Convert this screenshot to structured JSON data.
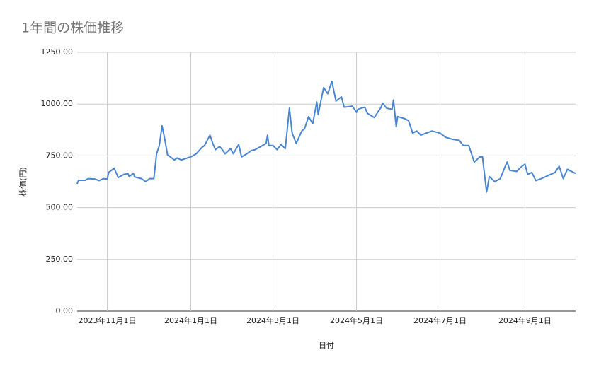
{
  "chart_data": {
    "type": "line",
    "title": "1年間の株価推移",
    "x_label": "日付",
    "y_label": "株価(円)",
    "x": [
      "2023-10-10",
      "2023-10-11",
      "2023-10-16",
      "2023-10-18",
      "2023-10-23",
      "2023-10-26",
      "2023-10-29",
      "2023-11-01",
      "2023-11-02",
      "2023-11-06",
      "2023-11-09",
      "2023-11-13",
      "2023-11-16",
      "2023-11-17",
      "2023-11-20",
      "2023-11-21",
      "2023-11-26",
      "2023-11-29",
      "2023-12-02",
      "2023-12-05",
      "2023-12-07",
      "2023-12-09",
      "2023-12-11",
      "2023-12-13",
      "2023-12-15",
      "2023-12-20",
      "2023-12-22",
      "2023-12-25",
      "2024-01-01",
      "2024-01-05",
      "2024-01-09",
      "2024-01-11",
      "2024-01-15",
      "2024-01-17",
      "2024-01-19",
      "2024-01-22",
      "2024-01-24",
      "2024-01-26",
      "2024-01-30",
      "2024-02-01",
      "2024-02-05",
      "2024-02-07",
      "2024-02-11",
      "2024-02-14",
      "2024-02-17",
      "2024-02-21",
      "2024-02-25",
      "2024-02-26",
      "2024-02-27",
      "2024-03-01",
      "2024-03-04",
      "2024-03-07",
      "2024-03-10",
      "2024-03-13",
      "2024-03-15",
      "2024-03-18",
      "2024-03-22",
      "2024-03-24",
      "2024-03-27",
      "2024-03-30",
      "2024-04-02",
      "2024-04-03",
      "2024-04-07",
      "2024-04-10",
      "2024-04-13",
      "2024-04-16",
      "2024-04-20",
      "2024-04-22",
      "2024-04-28",
      "2024-05-01",
      "2024-05-02",
      "2024-05-07",
      "2024-05-09",
      "2024-05-14",
      "2024-05-19",
      "2024-05-20",
      "2024-05-23",
      "2024-05-27",
      "2024-05-28",
      "2024-05-30",
      "2024-05-31",
      "2024-06-05",
      "2024-06-08",
      "2024-06-11",
      "2024-06-14",
      "2024-06-17",
      "2024-06-21",
      "2024-06-25",
      "2024-07-01",
      "2024-07-05",
      "2024-07-10",
      "2024-07-15",
      "2024-07-18",
      "2024-07-22",
      "2024-07-26",
      "2024-07-30",
      "2024-08-01",
      "2024-08-04",
      "2024-08-06",
      "2024-08-10",
      "2024-08-14",
      "2024-08-17",
      "2024-08-19",
      "2024-08-21",
      "2024-08-26",
      "2024-08-29",
      "2024-09-01",
      "2024-09-03",
      "2024-09-06",
      "2024-09-09",
      "2024-09-13",
      "2024-09-18",
      "2024-09-23",
      "2024-09-26",
      "2024-09-29",
      "2024-10-02",
      "2024-10-08"
    ],
    "series": [
      {
        "name": "株価",
        "color": "#4a86cf",
        "values": [
          615,
          632,
          632,
          640,
          638,
          630,
          640,
          638,
          670,
          690,
          645,
          660,
          665,
          650,
          665,
          648,
          640,
          625,
          640,
          640,
          760,
          800,
          895,
          830,
          755,
          730,
          740,
          730,
          745,
          760,
          790,
          800,
          850,
          810,
          780,
          795,
          780,
          760,
          785,
          760,
          805,
          745,
          760,
          775,
          780,
          795,
          810,
          850,
          800,
          800,
          780,
          805,
          785,
          980,
          860,
          810,
          870,
          880,
          940,
          905,
          1010,
          950,
          1080,
          1050,
          1110,
          1015,
          1035,
          985,
          990,
          960,
          975,
          985,
          955,
          935,
          985,
          1005,
          980,
          975,
          1020,
          890,
          940,
          930,
          920,
          860,
          870,
          850,
          860,
          870,
          860,
          840,
          830,
          825,
          800,
          800,
          720,
          745,
          745,
          575,
          650,
          625,
          640,
          690,
          720,
          680,
          675,
          695,
          710,
          660,
          670,
          630,
          640,
          655,
          670,
          700,
          640,
          685,
          665
        ]
      }
    ],
    "xlim": [
      "2023-10-10",
      "2024-10-08"
    ],
    "xticks": [
      {
        "value": "2023-11-01",
        "label": "2023年11月1日"
      },
      {
        "value": "2024-01-01",
        "label": "2024年1月1日"
      },
      {
        "value": "2024-03-01",
        "label": "2024年3月1日"
      },
      {
        "value": "2024-05-01",
        "label": "2024年5月1日"
      },
      {
        "value": "2024-07-01",
        "label": "2024年7月1日"
      },
      {
        "value": "2024-09-01",
        "label": "2024年9月1日"
      }
    ],
    "ylim": [
      0,
      1250
    ],
    "yticks": [
      {
        "value": 0,
        "label": "0.00"
      },
      {
        "value": 250,
        "label": "250.00"
      },
      {
        "value": 500,
        "label": "500.00"
      },
      {
        "value": 750,
        "label": "750.00"
      },
      {
        "value": 1000,
        "label": "1000.00"
      },
      {
        "value": 1250,
        "label": "1250.00"
      }
    ],
    "grid": true
  }
}
